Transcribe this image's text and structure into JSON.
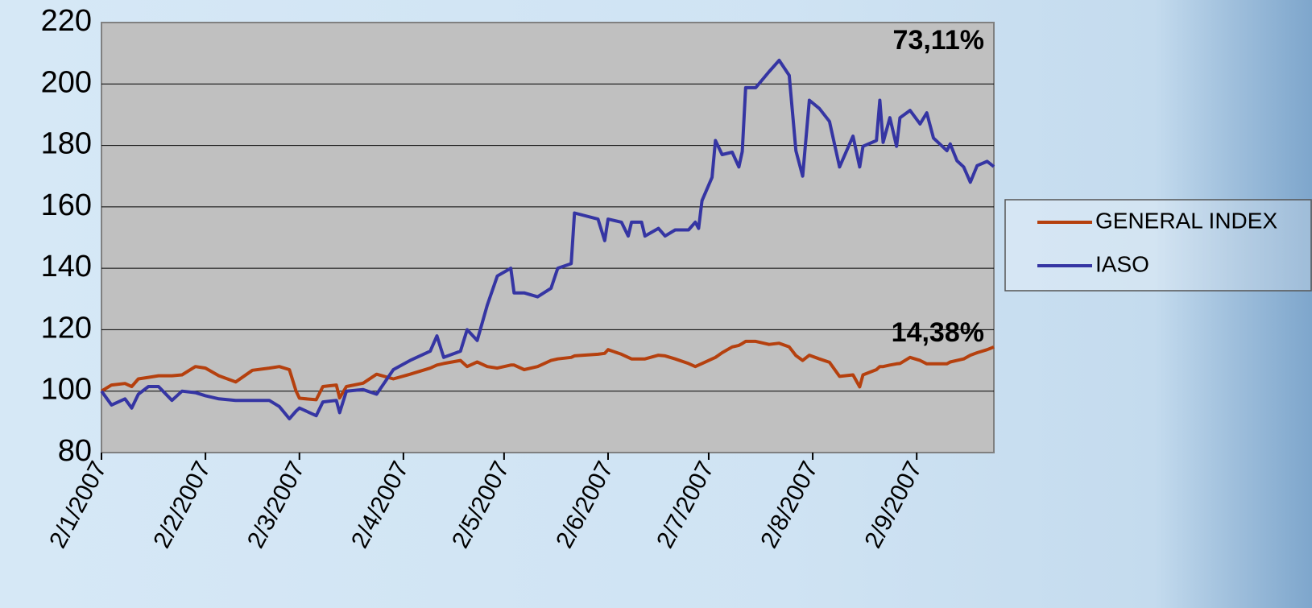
{
  "chart_data": {
    "type": "line",
    "x": [
      "2/1/2007",
      "5/1/2007",
      "9/1/2007",
      "11/1/2007",
      "13/1/2007",
      "16/1/2007",
      "19/1/2007",
      "23/1/2007",
      "26/1/2007",
      "30/1/2007",
      "2/2/2007",
      "6/2/2007",
      "11/2/2007",
      "16/2/2007",
      "21/2/2007",
      "24/2/2007",
      "27/2/2007",
      "1/3/2007",
      "2/3/2007",
      "7/3/2007",
      "9/3/2007",
      "13/3/2007",
      "14/3/2007",
      "16/3/2007",
      "21/3/2007",
      "25/3/2007",
      "30/3/2007",
      "4/4/2007",
      "10/4/2007",
      "12/4/2007",
      "14/4/2007",
      "19/4/2007",
      "21/4/2007",
      "24/4/2007",
      "27/4/2007",
      "30/4/2007",
      "4/5/2007",
      "5/5/2007",
      "8/5/2007",
      "12/5/2007",
      "16/5/2007",
      "18/5/2007",
      "22/5/2007",
      "23/5/2007",
      "30/5/2007",
      "1/6/2007",
      "2/6/2007",
      "6/6/2007",
      "8/6/2007",
      "9/6/2007",
      "12/6/2007",
      "13/6/2007",
      "17/6/2007",
      "19/6/2007",
      "22/6/2007",
      "26/6/2007",
      "28/6/2007",
      "29/6/2007",
      "30/6/2007",
      "3/7/2007",
      "4/7/2007",
      "6/7/2007",
      "9/7/2007",
      "11/7/2007",
      "12/7/2007",
      "13/7/2007",
      "16/7/2007",
      "20/7/2007",
      "23/7/2007",
      "26/7/2007",
      "28/7/2007",
      "30/7/2007",
      "1/8/2007",
      "4/8/2007",
      "7/8/2007",
      "10/8/2007",
      "14/8/2007",
      "16/8/2007",
      "17/8/2007",
      "21/8/2007",
      "22/8/2007",
      "23/8/2007",
      "25/8/2007",
      "27/8/2007",
      "28/8/2007",
      "31/8/2007",
      "3/9/2007",
      "5/9/2007",
      "7/9/2007",
      "11/9/2007",
      "12/9/2007",
      "14/9/2007",
      "16/9/2007",
      "18/9/2007",
      "20/9/2007",
      "23/9/2007",
      "25/9/2007"
    ],
    "series": [
      {
        "name": "GENERAL INDEX",
        "color": "#b5400e",
        "end_label": "14,38%",
        "values": [
          100,
          102,
          102.5,
          101.5,
          104,
          104.5,
          105,
          105,
          105.3,
          108,
          107.5,
          105,
          103,
          106.8,
          107.5,
          108,
          107,
          100,
          97.7,
          97.2,
          101.5,
          102,
          97.8,
          101.5,
          102.6,
          105.5,
          104,
          105.5,
          107.5,
          108.5,
          109,
          110,
          108,
          109.5,
          108,
          107.5,
          108.5,
          108.5,
          107,
          108,
          110,
          110.5,
          111,
          111.5,
          112,
          112.3,
          113.5,
          112,
          111,
          110.5,
          110.5,
          110.5,
          111.7,
          111.5,
          110.5,
          109,
          108,
          108.5,
          109,
          110.5,
          111,
          112.5,
          114.4,
          114.9,
          115.5,
          116.2,
          116.2,
          115.2,
          115.6,
          114.4,
          111.6,
          110,
          111.7,
          110.5,
          109.4,
          104.8,
          105.3,
          101.4,
          105.3,
          107,
          108,
          108,
          108.5,
          108.9,
          109,
          111,
          110,
          108.9,
          108.9,
          108.9,
          109.5,
          110,
          110.5,
          111.7,
          112.5,
          113.5,
          114.38
        ]
      },
      {
        "name": "IASO",
        "color": "#3535a3",
        "end_label": "73,11%",
        "values": [
          100,
          95.5,
          97.5,
          94.5,
          99,
          101.5,
          101.5,
          97,
          100,
          99.5,
          98.5,
          97.5,
          97,
          97,
          97,
          95,
          91,
          93.5,
          94.5,
          92,
          96.5,
          97,
          93,
          100,
          100.5,
          99,
          107,
          110,
          113,
          118,
          111,
          113,
          120,
          116.5,
          128,
          137.5,
          140,
          132,
          132,
          130.7,
          133.5,
          140,
          141.5,
          158,
          156,
          149,
          156,
          155,
          150.5,
          155,
          155,
          150.5,
          153,
          150.5,
          152.5,
          152.5,
          155,
          153,
          162,
          169.6,
          181.6,
          177,
          177.8,
          173,
          178,
          198.8,
          198.8,
          204,
          207.7,
          202.8,
          178.3,
          170,
          194.7,
          192,
          187.8,
          173,
          183,
          173,
          179.7,
          181.6,
          194.7,
          181,
          189,
          179.7,
          189,
          191.4,
          187,
          190.6,
          182.4,
          178.3,
          180.5,
          175,
          173,
          168,
          173.4,
          174.8,
          173.11
        ]
      }
    ],
    "xlim": [
      "2/1/2007",
      "25/9/2007"
    ],
    "xticks": [
      "2/1/2007",
      "2/2/2007",
      "2/3/2007",
      "2/4/2007",
      "2/5/2007",
      "2/6/2007",
      "2/7/2007",
      "2/8/2007",
      "2/9/2007"
    ],
    "ylim": [
      80,
      220
    ],
    "yticks": [
      80,
      100,
      120,
      140,
      160,
      180,
      200,
      220
    ],
    "grid": true,
    "legend": "right"
  }
}
